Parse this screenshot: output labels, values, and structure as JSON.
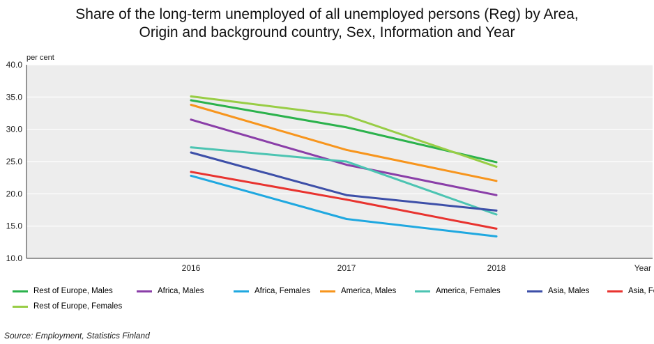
{
  "title_line1": "Share of the long-term unemployed of all unemployed persons (Reg) by Area,",
  "title_line2": "Origin and background country, Sex, Information and Year",
  "source": "Source: Employment, Statistics Finland",
  "chart_data": {
    "type": "line",
    "title": "Share of the long-term unemployed of all unemployed persons (Reg) by Area, Origin and background country, Sex, Information and Year",
    "ylabel": "per cent",
    "xlabel": "Year",
    "x": [
      "2016",
      "2017",
      "2018"
    ],
    "ylim": [
      10.0,
      40.0
    ],
    "yticks": [
      "10.0",
      "15.0",
      "20.0",
      "25.0",
      "30.0",
      "35.0",
      "40.0"
    ],
    "grid": true,
    "legend_position": "bottom",
    "series": [
      {
        "name": "Rest of Europe, Males",
        "color": "#2bb24c",
        "values": [
          34.5,
          30.3,
          24.9
        ]
      },
      {
        "name": "Africa, Males",
        "color": "#8a3ea8",
        "values": [
          31.5,
          24.5,
          19.8
        ]
      },
      {
        "name": "Africa, Females",
        "color": "#1fa8e0",
        "values": [
          22.8,
          16.1,
          13.4
        ]
      },
      {
        "name": "America, Males",
        "color": "#f7951d",
        "values": [
          33.8,
          26.8,
          22.0
        ]
      },
      {
        "name": "America, Females",
        "color": "#4cc4b2",
        "values": [
          27.2,
          25.0,
          16.8
        ]
      },
      {
        "name": "Asia, Males",
        "color": "#3d4fa8",
        "values": [
          26.4,
          19.8,
          17.4
        ]
      },
      {
        "name": "Asia, Females",
        "color": "#e8332f",
        "values": [
          23.4,
          19.1,
          14.6
        ]
      },
      {
        "name": "Rest of Europe, Females",
        "color": "#98cd45",
        "values": [
          35.1,
          32.1,
          24.2
        ]
      }
    ]
  }
}
